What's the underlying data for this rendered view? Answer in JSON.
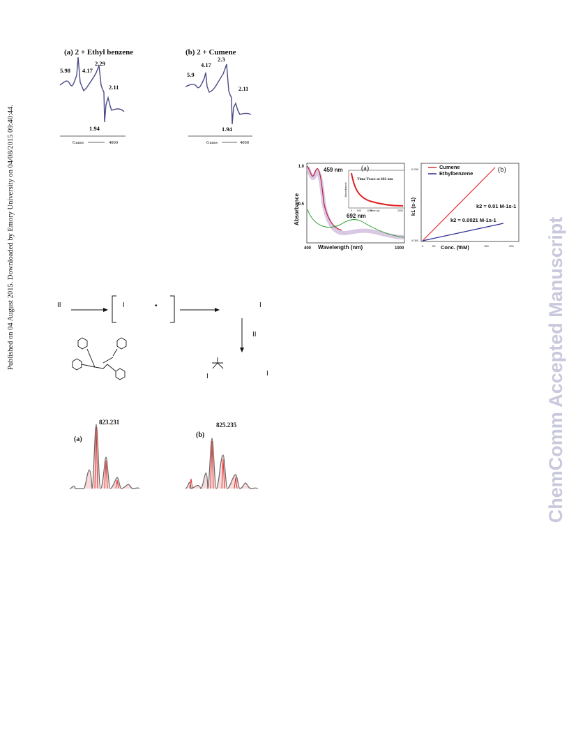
{
  "side_note": "Published on 04 August 2015. Downloaded by Emory University on 04/08/2015 09:40:44.",
  "watermark": "ChemComm Accepted Manuscript",
  "epr": [
    {
      "label": "(a) 2 + Ethyl benzene",
      "peaks": [
        "5.98",
        "4.17",
        "2.29",
        "2.11",
        "1.94"
      ],
      "x_axis": "Gauss",
      "x_end": "4000"
    },
    {
      "label": "(b) 2 + Cumene",
      "peaks": [
        "5.9",
        "4.17",
        "2.3",
        "2.11",
        "1.94"
      ],
      "x_axis": "Gauss",
      "x_end": "4000"
    }
  ],
  "uv_vis": {
    "panel": "(a)",
    "y_axis": "Absorbance",
    "yticks": [
      "1.0",
      "0.5"
    ],
    "x_axis": "Wavelength (nm)",
    "xticks": [
      "400",
      "1000"
    ],
    "peak_1": "459 nm",
    "peak_2": "692 nm",
    "inset_title": "Time Trace at 692 nm",
    "inset_y_axis": "Absorbance",
    "inset_x_axis": "Time (s)",
    "inset_xticks": [
      "0",
      "500",
      "1000",
      "2000"
    ]
  },
  "kinetics": {
    "panel": "(b)",
    "legend": [
      "Cumene",
      "Ethylbenzene"
    ],
    "rate_1": "k2 = 0.01 M-1s-1",
    "rate_2": "k2 = 0.0021 M-1s-1",
    "y_axis": "k1 (s-1)",
    "yticks": [
      "0.030",
      "0.000"
    ],
    "x_axis": "Conc. (mM)",
    "xticks": [
      "0",
      "50",
      "100",
      "150",
      "200"
    ]
  },
  "scheme": {
    "labels": [
      "II",
      "I",
      "•",
      "I",
      "II",
      "I",
      "I"
    ]
  },
  "mass_spec": [
    {
      "panel": "(a)",
      "peak": "823.231"
    },
    {
      "panel": "(b)",
      "peak": "825.235"
    }
  ]
}
